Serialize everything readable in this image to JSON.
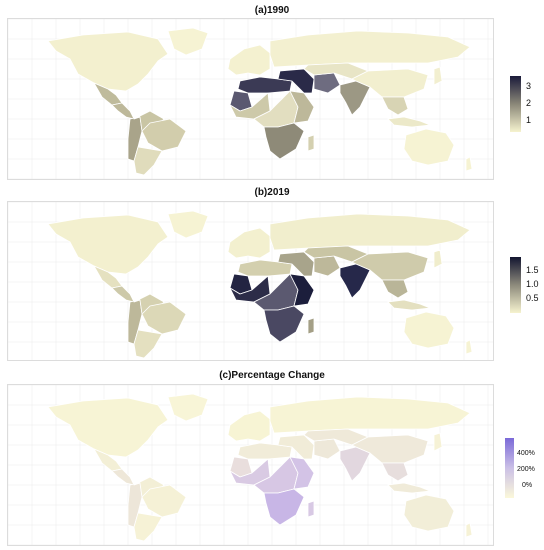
{
  "panels": [
    {
      "title": "(a)1990",
      "legend": {
        "ticks": [
          "3",
          "2",
          "1"
        ],
        "colors": [
          "#1a1a3a",
          "#8a8778",
          "#f6f3cf"
        ]
      },
      "regions": {
        "north-america": "#f3f0cf",
        "greenland": "#f6f3d3",
        "mexico": "#bfbb9c",
        "central-america": "#bdb89a",
        "south-america": "#c9c5a4",
        "brazil": "#d2cdac",
        "andes-west": "#a9a48a",
        "south-cone": "#e0dcbc",
        "europe": "#f4f1d0",
        "russia": "#f3f0d0",
        "north-africa": "#3b3a55",
        "sahara-west": "#5a5870",
        "west-africa": "#cdc9a9",
        "central-africa": "#e2dec0",
        "east-africa": "#bdb89a",
        "southern-africa": "#8e8a78",
        "middle-east": "#2a2a48",
        "iran": "#6e6c80",
        "central-asia": "#e8e5c6",
        "india": "#9c9884",
        "china": "#f2efcf",
        "southeast-asia": "#d8d4b4",
        "indonesia": "#ece9c9",
        "japan": "#f2efd0",
        "australia": "#f6f3d3",
        "madagascar": "#d4d0b0",
        "new-zealand": "#f6f3d3"
      }
    },
    {
      "title": "(b)2019",
      "legend": {
        "ticks": [
          "1.5",
          "1.0",
          "0.5"
        ],
        "colors": [
          "#121530",
          "#8d8a7c",
          "#f6f3cf"
        ]
      },
      "regions": {
        "north-america": "#f3f0cf",
        "greenland": "#f6f3d3",
        "mexico": "#e5e1c0",
        "central-america": "#cdc9a9",
        "south-america": "#d5d1b0",
        "brazil": "#dcd8b7",
        "andes-west": "#bdb89a",
        "south-cone": "#e4e0c0",
        "europe": "#f3f0cf",
        "russia": "#f1eecd",
        "north-africa": "#d3cfae",
        "sahara-west": "#232442",
        "west-africa": "#2c2c48",
        "central-africa": "#5b5970",
        "east-africa": "#1c1e3c",
        "southern-africa": "#4a4862",
        "middle-east": "#a8a48b",
        "iran": "#bdb89a",
        "central-asia": "#c9c5a4",
        "india": "#26284a",
        "china": "#cfcbab",
        "southeast-asia": "#b9b598",
        "indonesia": "#e4e0c0",
        "japan": "#f0edcc",
        "australia": "#f6f3d3",
        "madagascar": "#a49f86",
        "new-zealand": "#f6f3d3"
      }
    },
    {
      "title": "(c)Percentage Change",
      "legend": {
        "ticks": [
          "400%",
          "200%",
          "0%"
        ],
        "colors": [
          "#7b6ad8",
          "#cbc0e6",
          "#fbf8da"
        ]
      },
      "regions": {
        "north-america": "#f7f4d5",
        "greenland": "#f8f5d7",
        "mexico": "#f3efd6",
        "central-america": "#eee7d8",
        "south-america": "#f3efd6",
        "brazil": "#f5f1d6",
        "andes-west": "#ede6d9",
        "south-cone": "#f6f2d6",
        "europe": "#f7f4d4",
        "russia": "#f7f4d5",
        "north-africa": "#f1ecd9",
        "sahara-west": "#e9dedd",
        "west-africa": "#d9cae3",
        "central-africa": "#d7c7e4",
        "east-africa": "#d3c3e6",
        "southern-africa": "#c8b6e6",
        "middle-east": "#f1ecd8",
        "iran": "#eee8d9",
        "central-asia": "#efe9d9",
        "india": "#e2d7df",
        "china": "#efe9da",
        "southeast-asia": "#e7dedd",
        "indonesia": "#f0ebd9",
        "japan": "#f6f2d6",
        "australia": "#f2eed8",
        "madagascar": "#d8c9e4",
        "new-zealand": "#f6f2d6"
      }
    }
  ]
}
